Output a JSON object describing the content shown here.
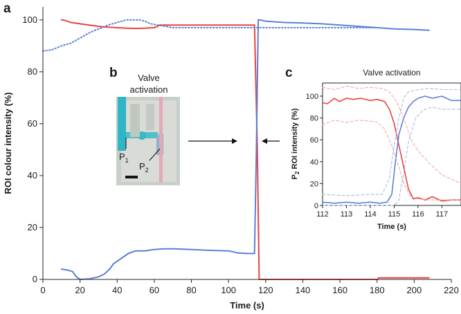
{
  "figure": {
    "panel_a_label": "a",
    "panel_b_label": "b",
    "panel_c_label": "c",
    "inset_b": {
      "caption_line1": "Valve",
      "caption_line2": "activation",
      "p1_label": "P",
      "p1_subscript": "1",
      "p2_label": "P",
      "p2_subscript": "2"
    }
  },
  "chart_data": [
    {
      "id": "main",
      "type": "line",
      "title": "",
      "xlabel": "Time (s)",
      "ylabel": "ROI colour intensity (%)",
      "xlim": [
        0,
        220
      ],
      "ylim": [
        0,
        105
      ],
      "xticks": [
        0,
        20,
        40,
        60,
        80,
        100,
        120,
        140,
        160,
        180,
        200,
        220
      ],
      "yticks": [
        0,
        20,
        40,
        60,
        80,
        100
      ],
      "colors": {
        "red": "#e8423f",
        "blue": "#5b7fd6"
      },
      "series": [
        {
          "name": "red",
          "style": "solid",
          "color": "#e8423f",
          "x": [
            10,
            12,
            15,
            20,
            25,
            30,
            35,
            40,
            45,
            50,
            55,
            60,
            63,
            70,
            80,
            90,
            100,
            110,
            114,
            115.5,
            116.5,
            130,
            150,
            170,
            180,
            181,
            185,
            190,
            200,
            208
          ],
          "y": [
            100,
            99.8,
            99,
            98.5,
            98,
            97.5,
            97.2,
            97,
            96.8,
            96.7,
            96.8,
            97,
            98,
            98,
            98,
            98,
            98,
            98,
            98,
            50,
            0,
            0,
            0,
            0,
            0,
            0.6,
            0.6,
            0.6,
            0.6,
            0.6
          ]
        },
        {
          "name": "blue",
          "style": "solid",
          "color": "#5b7fd6",
          "x": [
            10,
            14,
            16,
            18,
            20,
            25,
            30,
            33,
            36,
            38,
            42,
            46,
            50,
            55,
            60,
            65,
            70,
            80,
            90,
            100,
            105,
            110,
            114,
            115,
            116,
            117,
            120,
            130,
            140,
            150,
            160,
            170,
            180,
            190,
            200,
            208
          ],
          "y": [
            4,
            3.5,
            3,
            1,
            0,
            0.2,
            1,
            2,
            4,
            6,
            8,
            10,
            11,
            11,
            11.5,
            11.8,
            11.8,
            11.5,
            11.2,
            11,
            10.2,
            10,
            10,
            50,
            100,
            100,
            99.5,
            99,
            98.8,
            98.5,
            98,
            97.5,
            97,
            96.5,
            96.3,
            96
          ]
        },
        {
          "name": "blue-dotted",
          "style": "dotted",
          "color": "#5b7fd6",
          "x": [
            0,
            5,
            10,
            15,
            20,
            25,
            28,
            32,
            35,
            40,
            45,
            48,
            52,
            55,
            58,
            62,
            66,
            70,
            80,
            90,
            100,
            110,
            120,
            140,
            160,
            180
          ],
          "y": [
            88,
            88.5,
            90,
            91,
            93,
            95,
            96,
            97,
            98,
            99,
            100,
            100,
            100,
            99.5,
            98.5,
            98,
            97.5,
            97,
            97,
            97,
            97,
            97,
            97,
            97,
            97,
            97
          ]
        }
      ]
    },
    {
      "id": "inset_c",
      "type": "line",
      "title": "Valve activation",
      "xlabel": "Time (s)",
      "ylabel": "P2 ROI intensity (%)",
      "ylabel_prefix": "P",
      "ylabel_subscript": "2",
      "ylabel_suffix": " ROI intensity (%)",
      "xlim": [
        112,
        117.8
      ],
      "ylim": [
        0,
        112
      ],
      "xticks": [
        112,
        113,
        114,
        115,
        116,
        117
      ],
      "yticks": [
        0,
        20,
        40,
        60,
        80,
        100
      ],
      "series": [
        {
          "name": "red",
          "style": "solid",
          "color": "#e8423f",
          "x": [
            112,
            112.2,
            112.5,
            112.7,
            113,
            113.3,
            113.6,
            114,
            114.3,
            114.6,
            114.8,
            115,
            115.2,
            115.4,
            115.6,
            115.8,
            116,
            116.3,
            116.6,
            117,
            117.4,
            117.8
          ],
          "y": [
            94,
            93,
            98,
            95,
            98,
            97,
            98,
            96,
            97,
            95,
            88,
            75,
            55,
            35,
            15,
            6,
            7,
            5,
            8,
            4,
            5,
            5
          ]
        },
        {
          "name": "blue",
          "style": "solid",
          "color": "#5b7fd6",
          "x": [
            112,
            112.5,
            113,
            113.5,
            114,
            114.4,
            114.7,
            114.9,
            115.05,
            115.2,
            115.4,
            115.6,
            115.8,
            116,
            116.3,
            116.6,
            117,
            117.4,
            117.8
          ],
          "y": [
            3,
            2,
            3,
            2,
            3,
            2,
            3,
            10,
            40,
            65,
            80,
            90,
            95,
            98,
            100,
            98,
            100,
            96,
            96
          ]
        },
        {
          "name": "red-dashed-upper",
          "style": "dashed",
          "color": "#f3a7a5",
          "x": [
            112,
            112.5,
            113,
            113.5,
            114,
            114.5,
            114.8,
            115.1,
            115.4,
            115.7,
            116,
            116.5,
            117,
            117.8
          ],
          "y": [
            108,
            106,
            109,
            107,
            108,
            107,
            104,
            95,
            80,
            60,
            50,
            38,
            28,
            20
          ]
        },
        {
          "name": "red-dashed-lower",
          "style": "dashed",
          "color": "#f3a7a5",
          "x": [
            112,
            112.5,
            113,
            113.5,
            114,
            114.3,
            114.6,
            114.9,
            115.2,
            115.4,
            115.7,
            116,
            116.5,
            117,
            117.8
          ],
          "y": [
            74,
            78,
            76,
            78,
            77,
            76,
            70,
            55,
            35,
            20,
            8,
            6,
            5,
            5,
            5
          ]
        },
        {
          "name": "blue-dashed-upper",
          "style": "dashed",
          "color": "#a9b9e6",
          "x": [
            112,
            113,
            114,
            114.5,
            114.8,
            115,
            115.2,
            115.4,
            115.6,
            116,
            116.5,
            117,
            117.8
          ],
          "y": [
            10,
            9,
            10,
            10,
            25,
            55,
            80,
            98,
            104,
            106,
            107,
            106,
            106
          ]
        },
        {
          "name": "blue-dashed-lower",
          "style": "dashed",
          "color": "#a9b9e6",
          "x": [
            112,
            113,
            114,
            114.6,
            115,
            115.2,
            115.4,
            115.6,
            115.9,
            116.2,
            116.6,
            117,
            117.8
          ],
          "y": [
            0,
            0,
            0,
            0,
            0,
            5,
            30,
            58,
            80,
            87,
            90,
            88,
            88
          ]
        }
      ]
    }
  ]
}
